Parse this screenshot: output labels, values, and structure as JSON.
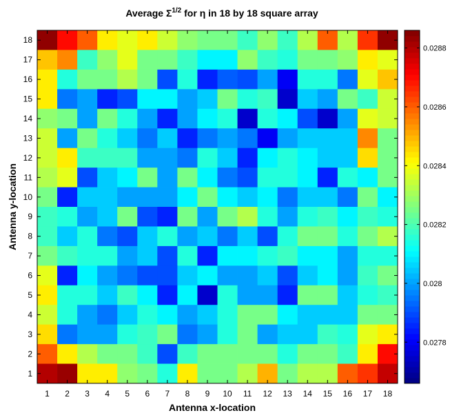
{
  "chart_data": {
    "type": "heatmap",
    "title_main": "Average Σ",
    "title_sup": "1/2",
    "title_rest": " for η in 18 by 18 square array",
    "xlabel": "Antenna x-location",
    "ylabel": "Antenna y-location",
    "x": [
      1,
      2,
      3,
      4,
      5,
      6,
      7,
      8,
      9,
      10,
      11,
      12,
      13,
      14,
      15,
      16,
      17,
      18
    ],
    "y": [
      1,
      2,
      3,
      4,
      5,
      6,
      7,
      8,
      9,
      10,
      11,
      12,
      13,
      14,
      15,
      16,
      17,
      18
    ],
    "clim": [
      0.02766,
      0.02886
    ],
    "colorbar_ticks": [
      0.0278,
      0.028,
      0.0282,
      0.0284,
      0.0286,
      0.0288
    ],
    "colorbar_tick_labels": [
      "0.0278",
      "0.028",
      "0.0282",
      "0.0284",
      "0.0286",
      "0.0288"
    ],
    "colormap": "jet",
    "z_rows_top_to_bottom": [
      [
        0.02884,
        0.0287,
        0.0286,
        0.02843,
        0.02838,
        0.02843,
        0.02835,
        0.02828,
        0.02825,
        0.02825,
        0.02818,
        0.02828,
        0.02818,
        0.02832,
        0.0286,
        0.02832,
        0.02865,
        0.02884
      ],
      [
        0.02848,
        0.02855,
        0.02818,
        0.02828,
        0.02838,
        0.02825,
        0.02825,
        0.02818,
        0.0281,
        0.0281,
        0.02828,
        0.02818,
        0.02815,
        0.02825,
        0.02825,
        0.02828,
        0.02843,
        0.02838
      ],
      [
        0.02843,
        0.02815,
        0.02825,
        0.02825,
        0.02832,
        0.02825,
        0.0279,
        0.02815,
        0.02785,
        0.02792,
        0.0279,
        0.028,
        0.0278,
        0.02815,
        0.02815,
        0.02795,
        0.02838,
        0.02848
      ],
      [
        0.02843,
        0.02795,
        0.028,
        0.02785,
        0.0279,
        0.0281,
        0.0281,
        0.028,
        0.02805,
        0.02825,
        0.02815,
        0.02818,
        0.02775,
        0.02805,
        0.028,
        0.02825,
        0.02818,
        0.02835
      ],
      [
        0.02828,
        0.02825,
        0.028,
        0.02825,
        0.02815,
        0.028,
        0.02785,
        0.028,
        0.0281,
        0.02815,
        0.02775,
        0.02815,
        0.0281,
        0.0279,
        0.02775,
        0.028,
        0.02838,
        0.02835
      ],
      [
        0.02835,
        0.028,
        0.02825,
        0.02815,
        0.02805,
        0.02795,
        0.02805,
        0.02785,
        0.02795,
        0.028,
        0.02795,
        0.0278,
        0.028,
        0.02805,
        0.02805,
        0.02805,
        0.02855,
        0.02825
      ],
      [
        0.02835,
        0.02843,
        0.02818,
        0.02818,
        0.02818,
        0.028,
        0.028,
        0.02795,
        0.02815,
        0.02805,
        0.02785,
        0.0281,
        0.02815,
        0.0281,
        0.02805,
        0.02805,
        0.02845,
        0.02825
      ],
      [
        0.02832,
        0.02838,
        0.0279,
        0.02805,
        0.0281,
        0.02825,
        0.028,
        0.02825,
        0.0281,
        0.02795,
        0.0279,
        0.02815,
        0.02815,
        0.0281,
        0.02785,
        0.02815,
        0.0281,
        0.02825
      ],
      [
        0.02825,
        0.02785,
        0.02805,
        0.02805,
        0.028,
        0.028,
        0.028,
        0.0281,
        0.02825,
        0.0281,
        0.02805,
        0.0281,
        0.02795,
        0.02805,
        0.02805,
        0.02795,
        0.02825,
        0.0281
      ],
      [
        0.02818,
        0.02815,
        0.028,
        0.02805,
        0.02825,
        0.0279,
        0.02785,
        0.02825,
        0.028,
        0.02825,
        0.02832,
        0.02815,
        0.028,
        0.02815,
        0.02818,
        0.0281,
        0.02818,
        0.02815
      ],
      [
        0.02818,
        0.02805,
        0.02815,
        0.02795,
        0.0279,
        0.02805,
        0.02815,
        0.028,
        0.02805,
        0.02795,
        0.02805,
        0.0279,
        0.02815,
        0.02825,
        0.02825,
        0.02815,
        0.02825,
        0.02832
      ],
      [
        0.02825,
        0.02818,
        0.02815,
        0.02815,
        0.028,
        0.02805,
        0.0279,
        0.02815,
        0.02785,
        0.0281,
        0.0281,
        0.02815,
        0.02818,
        0.0281,
        0.0281,
        0.028,
        0.02815,
        0.02815
      ],
      [
        0.02838,
        0.02785,
        0.0281,
        0.028,
        0.02795,
        0.0279,
        0.0279,
        0.02805,
        0.0281,
        0.028,
        0.028,
        0.02805,
        0.0279,
        0.02805,
        0.0281,
        0.028,
        0.02818,
        0.02825
      ],
      [
        0.02843,
        0.02815,
        0.02815,
        0.02805,
        0.02818,
        0.0281,
        0.02785,
        0.0281,
        0.02775,
        0.02815,
        0.028,
        0.028,
        0.02785,
        0.02825,
        0.02825,
        0.02805,
        0.02815,
        0.02818
      ],
      [
        0.02835,
        0.02815,
        0.028,
        0.02795,
        0.02805,
        0.02815,
        0.0281,
        0.028,
        0.02805,
        0.02815,
        0.02825,
        0.02825,
        0.0281,
        0.02805,
        0.02805,
        0.02805,
        0.02825,
        0.02825
      ],
      [
        0.02845,
        0.02795,
        0.028,
        0.028,
        0.02815,
        0.02818,
        0.02825,
        0.02795,
        0.028,
        0.02815,
        0.02825,
        0.028,
        0.02805,
        0.02805,
        0.02818,
        0.02815,
        0.02838,
        0.02843
      ],
      [
        0.0286,
        0.02843,
        0.02832,
        0.02825,
        0.02825,
        0.02818,
        0.0279,
        0.02818,
        0.02825,
        0.02825,
        0.02825,
        0.02825,
        0.02815,
        0.02825,
        0.02825,
        0.02818,
        0.02843,
        0.0287
      ],
      [
        0.0288,
        0.02883,
        0.02843,
        0.02843,
        0.02828,
        0.02825,
        0.02815,
        0.02843,
        0.02825,
        0.02825,
        0.02832,
        0.0285,
        0.02825,
        0.02832,
        0.02832,
        0.0286,
        0.02865,
        0.02878
      ]
    ]
  }
}
